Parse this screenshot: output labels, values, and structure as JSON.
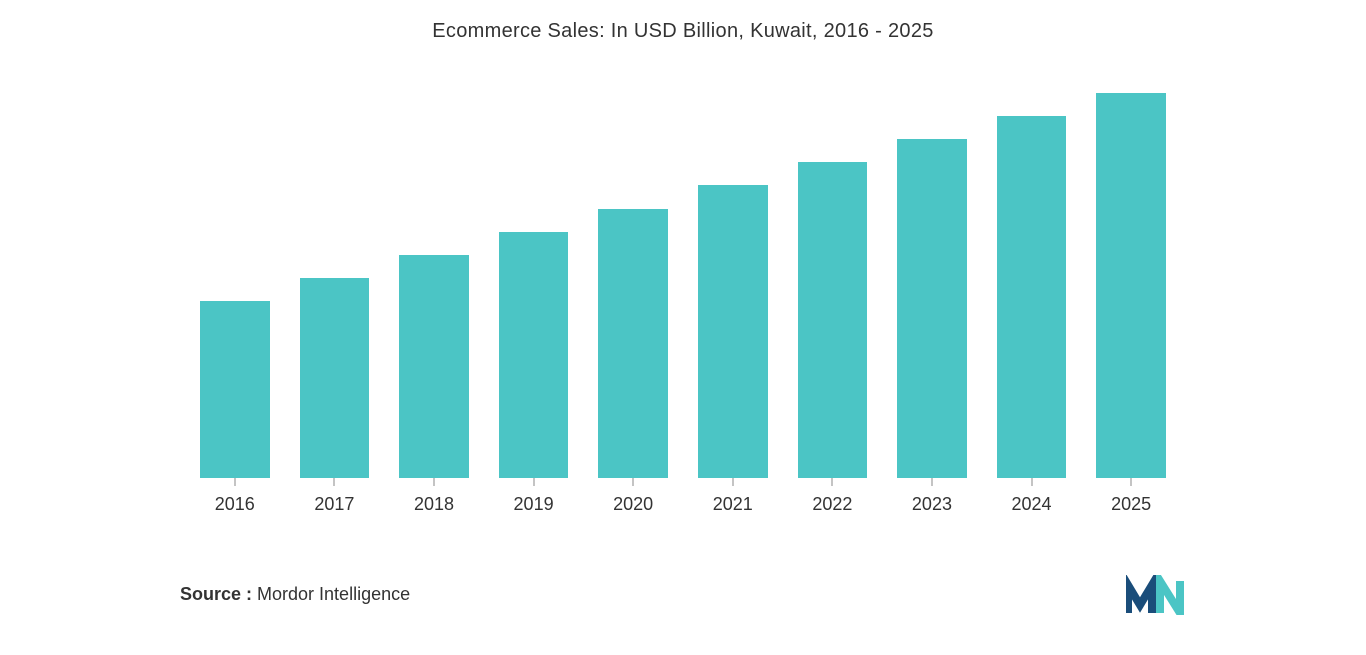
{
  "chart": {
    "type": "bar",
    "title": "Ecommerce Sales: In USD Billion, Kuwait, 2016 - 2025",
    "title_fontsize": 20,
    "title_color": "#333333",
    "categories": [
      "2016",
      "2017",
      "2018",
      "2019",
      "2020",
      "2021",
      "2022",
      "2023",
      "2024",
      "2025"
    ],
    "values": [
      46,
      52,
      58,
      64,
      70,
      76,
      82,
      88,
      94,
      100
    ],
    "bar_color": "#4bc5c5",
    "background_color": "#ffffff",
    "axis_label_color": "#333333",
    "axis_label_fontsize": 18,
    "bar_width_ratio": 0.72,
    "ylim": [
      0,
      100
    ],
    "y_axis_visible": false,
    "grid_visible": false
  },
  "source": {
    "label": "Source :",
    "text": " Mordor Intelligence",
    "fontsize": 18,
    "label_color": "#333333",
    "text_color": "#333333"
  },
  "logo": {
    "primary_color": "#1a4d7a",
    "secondary_color": "#4bc5c5"
  }
}
